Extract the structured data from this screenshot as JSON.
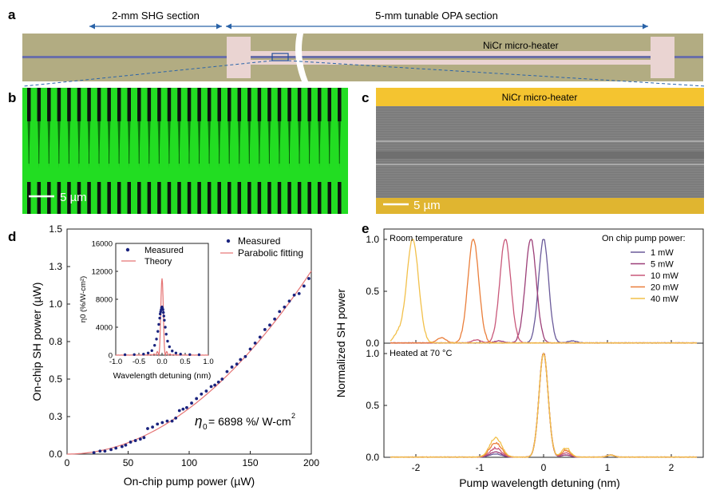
{
  "panel_labels": {
    "a": "a",
    "b": "b",
    "c": "c",
    "d": "d",
    "e": "e"
  },
  "panel_a": {
    "shg_label": "2-mm SHG section",
    "opa_label": "5-mm tunable OPA section",
    "heater_label": "NiCr micro-heater"
  },
  "panel_b": {
    "scale_label": "5 µm"
  },
  "panel_c": {
    "heater_label": "NiCr micro-heater",
    "scale_label": "5 µm"
  },
  "colors": {
    "measured": "#1a237e",
    "fit": "#e57373",
    "heater": "#f4c430",
    "pp_green": "#22dd22",
    "series": [
      "#6a5a9a",
      "#9c3f78",
      "#c9587a",
      "#ea7e3a",
      "#f2c04a"
    ]
  },
  "chart_data": [
    {
      "id": "d-main",
      "type": "scatter",
      "xlabel": "On-chip pump power (µW)",
      "ylabel": "On-chip SH power (µW)",
      "xlim": [
        0,
        200
      ],
      "ylim": [
        0,
        1.5
      ],
      "xticks": [
        "0",
        "50",
        "100",
        "150",
        "200"
      ],
      "yticks": [
        "0.0",
        "0.3",
        "0.5",
        "0.8",
        "1.0",
        "1.3",
        "1.5"
      ],
      "ytick_values": [
        0,
        0.25,
        0.5,
        0.75,
        1.0,
        1.25,
        1.5
      ],
      "xtick_values": [
        0,
        50,
        100,
        150,
        200
      ],
      "legend": [
        "Measured",
        "Parabolic fitting"
      ],
      "annotation_eta": "η",
      "annotation_sub": "0",
      "annotation_text": "= 6898 %/ W-cm",
      "annotation_sup": "2",
      "fit_coefficient": 3.05e-05,
      "x": [
        22,
        27,
        31,
        36,
        40,
        45,
        48,
        52,
        56,
        60,
        63,
        66,
        70,
        74,
        78,
        82,
        86,
        89,
        92,
        95,
        98,
        102,
        106,
        110,
        114,
        118,
        121,
        124,
        127,
        131,
        135,
        139,
        142,
        146,
        150,
        154,
        158,
        162,
        166,
        170,
        174,
        178,
        182,
        186,
        190,
        194,
        198
      ],
      "y": [
        0.01,
        0.02,
        0.02,
        0.03,
        0.04,
        0.05,
        0.06,
        0.08,
        0.09,
        0.1,
        0.11,
        0.17,
        0.18,
        0.2,
        0.21,
        0.22,
        0.22,
        0.24,
        0.29,
        0.3,
        0.31,
        0.34,
        0.37,
        0.4,
        0.42,
        0.45,
        0.46,
        0.48,
        0.5,
        0.55,
        0.58,
        0.6,
        0.63,
        0.65,
        0.7,
        0.74,
        0.78,
        0.83,
        0.86,
        0.9,
        0.95,
        0.98,
        1.02,
        1.06,
        1.07,
        1.12,
        1.17
      ]
    },
    {
      "id": "d-inset",
      "type": "line",
      "xlabel": "Wavelength detuning (nm)",
      "ylabel": "η0 (%/W-cm²)",
      "xlim": [
        -1,
        1
      ],
      "ylim": [
        0,
        16000
      ],
      "xticks": [
        "-1.0",
        "-0.5",
        "0.0",
        "0.5",
        "1.0"
      ],
      "xtick_values": [
        -1,
        -0.5,
        0,
        0.5,
        1
      ],
      "yticks": [
        "0",
        "4000",
        "8000",
        "12000",
        "16000"
      ],
      "ytick_values": [
        0,
        4000,
        8000,
        12000,
        16000
      ],
      "legend": [
        "Measured",
        "Theory"
      ],
      "theory_peak": 11000,
      "theory_width": 0.07,
      "measured_x": [
        -0.8,
        -0.6,
        -0.4,
        -0.3,
        -0.22,
        -0.16,
        -0.12,
        -0.09,
        -0.07,
        -0.05,
        -0.04,
        -0.03,
        -0.02,
        -0.01,
        0.0,
        0.01,
        0.02,
        0.03,
        0.04,
        0.05,
        0.07,
        0.09,
        0.12,
        0.16,
        0.22,
        0.3,
        0.4,
        0.6,
        0.8
      ],
      "measured_y": [
        60,
        80,
        150,
        300,
        650,
        1400,
        2300,
        3400,
        4400,
        5300,
        5900,
        6200,
        6500,
        6800,
        6900,
        6700,
        6500,
        6100,
        5600,
        5000,
        4000,
        3000,
        2000,
        1200,
        600,
        300,
        150,
        80,
        60
      ]
    },
    {
      "id": "e-top",
      "type": "line",
      "title": "Room temperature",
      "legend_title": "On chip pump power:",
      "ylabel": "Normalized SH power",
      "xlim": [
        -2.5,
        2.5
      ],
      "ylim": [
        0,
        1.1
      ],
      "yticks": [
        "0.0",
        "0.5",
        "1.0"
      ],
      "ytick_values": [
        0,
        0.5,
        1.0
      ],
      "series": [
        {
          "name": "1 mW",
          "center": 0.0,
          "width": 0.11,
          "side_pos": 0.45,
          "side_amp": 0.02
        },
        {
          "name": "5 mW",
          "center": -0.2,
          "width": 0.12,
          "side_pos": -0.7,
          "side_amp": 0.02
        },
        {
          "name": "10 mW",
          "center": -0.6,
          "width": 0.12,
          "side_pos": -1.05,
          "side_amp": 0.03
        },
        {
          "name": "20 mW",
          "center": -1.1,
          "width": 0.12,
          "side_pos": -1.6,
          "side_amp": 0.05
        },
        {
          "name": "40 mW",
          "center": -2.05,
          "width": 0.13,
          "side_pos": -2.28,
          "side_amp": 0.08
        }
      ]
    },
    {
      "id": "e-bottom",
      "type": "line",
      "title": "Heated at 70 °C",
      "xlabel": "Pump wavelength detuning (nm)",
      "xlim": [
        -2.5,
        2.5
      ],
      "ylim": [
        0,
        1.1
      ],
      "xticks": [
        "-2",
        "-1",
        "0",
        "1",
        "2"
      ],
      "xtick_values": [
        -2,
        -1,
        0,
        1,
        2
      ],
      "yticks": [
        "0.0",
        "0.5",
        "1.0"
      ],
      "ytick_values": [
        0,
        0.5,
        1.0
      ],
      "series": [
        {
          "name": "1 mW",
          "side1": 0.03,
          "side2": 0.02
        },
        {
          "name": "5 mW",
          "side1": 0.05,
          "side2": 0.02
        },
        {
          "name": "10 mW",
          "side1": 0.08,
          "side2": 0.04
        },
        {
          "name": "20 mW",
          "side1": 0.13,
          "side2": 0.06
        },
        {
          "name": "40 mW",
          "side1": 0.18,
          "side2": 0.08
        }
      ]
    }
  ]
}
